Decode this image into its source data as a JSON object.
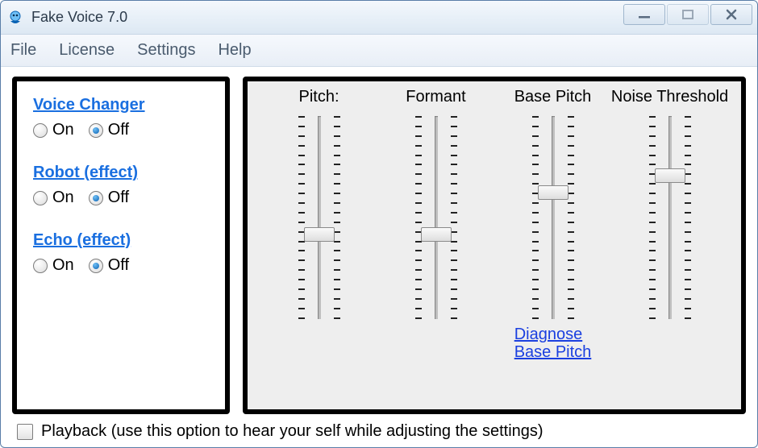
{
  "window": {
    "title": "Fake Voice 7.0"
  },
  "menu": {
    "file": "File",
    "license": "License",
    "settings": "Settings",
    "help": "Help"
  },
  "effects": {
    "voice_changer": {
      "title": "Voice Changer",
      "on": "On",
      "off": "Off",
      "value": "off"
    },
    "robot": {
      "title": "Robot (effect)",
      "on": "On",
      "off": "Off",
      "value": "off"
    },
    "echo": {
      "title": "Echo (effect)",
      "on": "On",
      "off": "Off",
      "value": "off"
    }
  },
  "sliders": {
    "pitch": {
      "label": "Pitch:",
      "value": 0.42,
      "ticks": 22
    },
    "formant": {
      "label": "Formant",
      "value": 0.42,
      "ticks": 22
    },
    "basepitch": {
      "label": "Base Pitch",
      "value": 0.62,
      "ticks": 22
    },
    "noise": {
      "label": "Noise Threshold",
      "value": 0.7,
      "ticks": 22
    }
  },
  "links": {
    "diagnose_line1": "Diagnose",
    "diagnose_line2": "Base Pitch"
  },
  "playback": {
    "label": "Playback (use this option to hear your self while adjusting the settings)",
    "checked": false
  },
  "colors": {
    "panel_border": "#000000",
    "right_bg": "#eeeeee",
    "link_blue": "#1a6fe0"
  }
}
